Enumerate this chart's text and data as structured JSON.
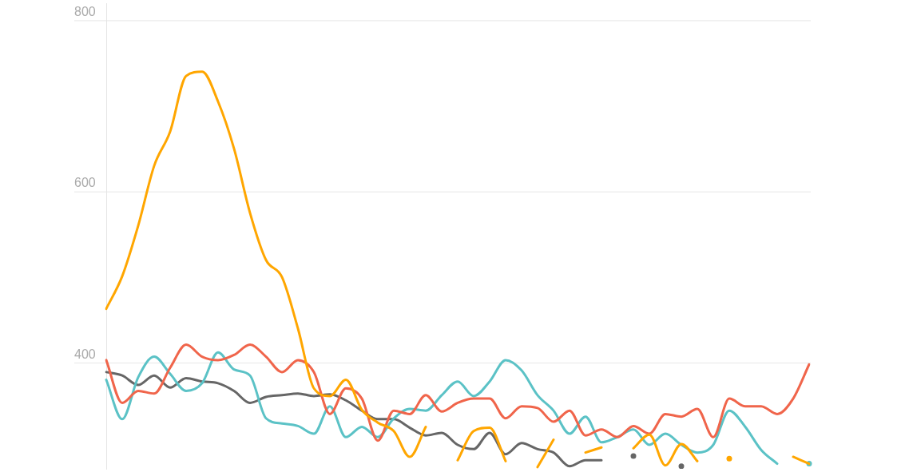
{
  "chart_data": {
    "type": "line",
    "categories": [
      null,
      null,
      null,
      null,
      null,
      null,
      null,
      null,
      null,
      null,
      null,
      null,
      null,
      null,
      null,
      null,
      null,
      null,
      null,
      null,
      null,
      null,
      null,
      null,
      null,
      null,
      null,
      null,
      null,
      null,
      null,
      null,
      null,
      null,
      null,
      null,
      null,
      null,
      null,
      null,
      null,
      null,
      null,
      null,
      null
    ],
    "series": [
      {
        "color": "#ffa600",
        "values": [
          463,
          501,
          560,
          630,
          670,
          735,
          740,
          705,
          650,
          575,
          520,
          500,
          440,
          370,
          361,
          380,
          345,
          330,
          320,
          290,
          325,
          null,
          286,
          320,
          324,
          285,
          null,
          278,
          310,
          null,
          295,
          301,
          null,
          300,
          316,
          280,
          305,
          285,
          null,
          288,
          null,
          null,
          null,
          290,
          282
        ]
      },
      {
        "color": "#f0654b",
        "values": [
          403,
          353,
          367,
          364,
          394,
          421,
          407,
          403,
          409,
          421,
          407,
          389,
          403,
          389,
          340,
          370,
          358,
          309,
          344,
          340,
          362,
          343,
          353,
          358,
          358,
          335,
          349,
          347,
          331,
          344,
          315,
          322,
          313,
          326,
          317,
          340,
          337,
          346,
          313,
          358,
          349,
          349,
          340,
          358,
          398
        ]
      },
      {
        "color": "#5bc2c6",
        "values": [
          380,
          334,
          383,
          407,
          387,
          367,
          376,
          412,
          392,
          385,
          335,
          329,
          326,
          317,
          349,
          313,
          325,
          313,
          335,
          346,
          344,
          362,
          378,
          361,
          378,
          403,
          391,
          362,
          344,
          317,
          337,
          307,
          313,
          322,
          304,
          317,
          304,
          295,
          304,
          344,
          325,
          298,
          282,
          null,
          282
        ]
      },
      {
        "color": "#666666",
        "values": [
          389,
          385,
          374,
          385,
          371,
          382,
          378,
          376,
          367,
          353,
          360,
          362,
          364,
          361,
          363,
          356,
          344,
          334,
          334,
          324,
          315,
          318,
          304,
          299,
          318,
          293,
          306,
          299,
          295,
          279,
          286,
          286,
          null,
          291,
          null,
          null,
          279,
          null,
          null,
          null,
          null,
          null,
          null,
          null,
          null
        ]
      }
    ],
    "ylim": [
      276,
      820
    ],
    "yticks": [
      400,
      600,
      800
    ],
    "grid": "y",
    "legend": false,
    "tick_labels": "y"
  }
}
